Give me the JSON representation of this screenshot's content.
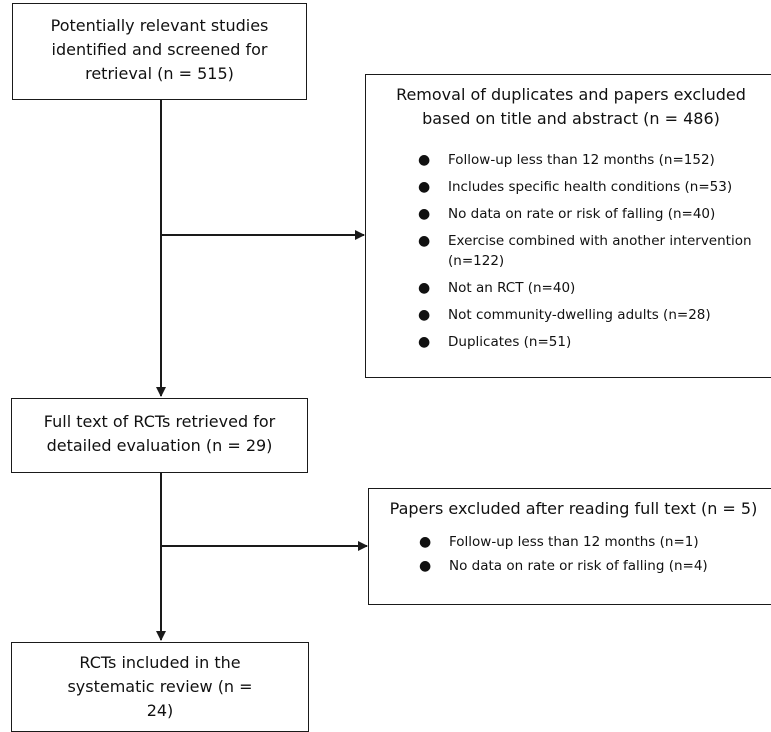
{
  "flow": {
    "identified": "Potentially relevant studies identified and screened for retrieval (n = 515)",
    "full_text": "Full text of RCTs retrieved for detailed evaluation (n = 29)",
    "included": "RCTs included in the systematic review (n = 24)"
  },
  "exclusion1": {
    "title": "Removal of duplicates and papers excluded based on title and abstract (n = 486)",
    "items": [
      "Follow-up less than 12 months (n=152)",
      "Includes specific health conditions (n=53)",
      "No data on rate or risk of falling (n=40)",
      "Exercise combined with another intervention (n=122)",
      "Not an RCT (n=40)",
      "Not community-dwelling adults (n=28)",
      "Duplicates (n=51)"
    ]
  },
  "exclusion2": {
    "title": "Papers excluded after reading full text (n = 5)",
    "items": [
      "Follow-up less than 12 months  (n=1)",
      "No data on rate or risk of falling (n=4)"
    ]
  }
}
